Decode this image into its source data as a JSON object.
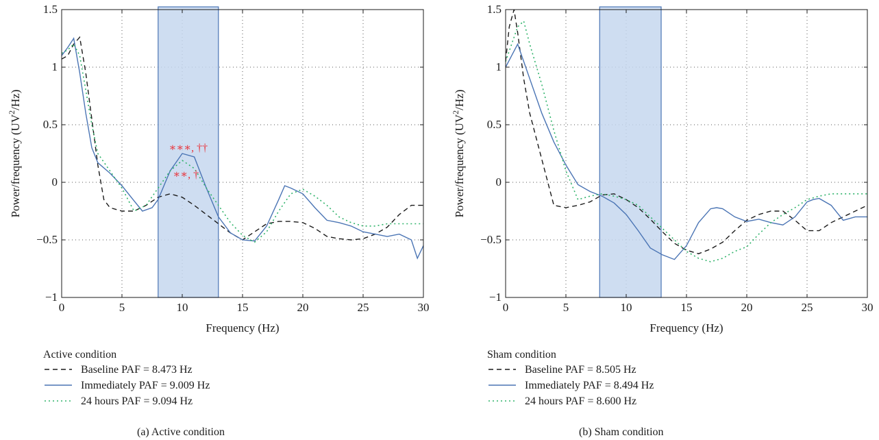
{
  "colors": {
    "baseline": "#1a1a1a",
    "immediately": "#4a74b4",
    "hours24": "#2fb36a",
    "band_fill": "#c5d7ee",
    "band_stroke": "#4a74b4",
    "annotation": "#e8333a"
  },
  "chart_data": [
    {
      "type": "line",
      "panel": "a",
      "caption": "(a) Active condition",
      "xlabel": "Frequency (Hz)",
      "ylabel": "Power/frequency (UV",
      "ylabel_sup": "2",
      "ylabel_tail": "/Hz)",
      "xlim": [
        0,
        30
      ],
      "ylim": [
        -1,
        1.5
      ],
      "xticks": [
        0,
        5,
        10,
        15,
        20,
        25,
        30
      ],
      "xtick_labels": [
        "0",
        "5",
        "10",
        "15",
        "20",
        "25",
        "30"
      ],
      "yticks": [
        -1,
        -0.5,
        0,
        0.5,
        1,
        1.5
      ],
      "ytick_labels": [
        "−1",
        "−0.5",
        "0",
        "0.5",
        "1",
        "1.5"
      ],
      "grid": "dotted",
      "band": [
        8,
        13
      ],
      "legend_title": "Active condition",
      "annotations": [
        {
          "text": "∗∗∗, ††",
          "x": 10.5,
          "y": 0.27
        },
        {
          "text": "∗∗, †",
          "x": 10.3,
          "y": 0.04
        }
      ],
      "series": [
        {
          "name": "Baseline PAF = 8.473 Hz",
          "style": "dashed",
          "x": [
            0,
            0.5,
            1,
            1.5,
            2,
            2.5,
            3,
            3.5,
            4,
            5,
            6,
            7,
            8,
            9,
            10,
            11,
            12,
            13,
            14,
            15,
            16,
            17,
            18,
            19,
            20,
            21,
            22,
            23,
            24,
            25,
            26,
            27,
            28,
            29,
            30
          ],
          "values": [
            1.07,
            1.1,
            1.2,
            1.26,
            0.95,
            0.55,
            0.15,
            -0.15,
            -0.22,
            -0.25,
            -0.25,
            -0.2,
            -0.13,
            -0.1,
            -0.13,
            -0.2,
            -0.28,
            -0.36,
            -0.44,
            -0.5,
            -0.43,
            -0.36,
            -0.34,
            -0.34,
            -0.35,
            -0.4,
            -0.47,
            -0.49,
            -0.5,
            -0.49,
            -0.45,
            -0.39,
            -0.28,
            -0.2,
            -0.2
          ]
        },
        {
          "name": "Immediately PAF = 9.009 Hz",
          "style": "solid",
          "x": [
            0,
            0.5,
            1,
            1.5,
            2,
            2.5,
            3,
            4,
            5,
            6,
            6.7,
            7.5,
            8,
            9,
            10,
            11,
            12,
            13,
            14,
            15,
            16,
            17,
            18,
            18.5,
            19,
            20,
            21,
            22,
            23,
            24,
            25,
            26,
            27,
            28,
            29,
            29.5,
            30
          ],
          "values": [
            1.1,
            1.17,
            1.25,
            0.95,
            0.6,
            0.3,
            0.17,
            0.08,
            -0.03,
            -0.16,
            -0.25,
            -0.22,
            -0.15,
            0.1,
            0.25,
            0.22,
            -0.05,
            -0.3,
            -0.44,
            -0.5,
            -0.51,
            -0.38,
            -0.15,
            -0.03,
            -0.05,
            -0.1,
            -0.22,
            -0.33,
            -0.35,
            -0.38,
            -0.43,
            -0.45,
            -0.47,
            -0.45,
            -0.5,
            -0.66,
            -0.55
          ]
        },
        {
          "name": "24 hours PAF = 9.094 Hz",
          "style": "dotted",
          "x": [
            0,
            0.5,
            1,
            1.5,
            2,
            2.5,
            3,
            4,
            5,
            6,
            7,
            8,
            9,
            10,
            11,
            12,
            13,
            14,
            15,
            16,
            17,
            18,
            19,
            20,
            21,
            22,
            23,
            24,
            25,
            26,
            27,
            28,
            29,
            30
          ],
          "values": [
            1.12,
            1.15,
            1.2,
            1.1,
            0.8,
            0.5,
            0.25,
            0.1,
            -0.05,
            -0.25,
            -0.2,
            -0.05,
            0.1,
            0.19,
            0.12,
            -0.05,
            -0.2,
            -0.35,
            -0.46,
            -0.52,
            -0.43,
            -0.25,
            -0.1,
            -0.06,
            -0.12,
            -0.2,
            -0.3,
            -0.35,
            -0.38,
            -0.38,
            -0.36,
            -0.36,
            -0.36,
            -0.36
          ]
        }
      ]
    },
    {
      "type": "line",
      "panel": "b",
      "caption": "(b) Sham condition",
      "xlabel": "Frequency (Hz)",
      "ylabel": "Power/frequency (UV",
      "ylabel_sup": "2",
      "ylabel_tail": "/Hz)",
      "xlim": [
        0,
        30
      ],
      "ylim": [
        -1,
        1.5
      ],
      "xticks": [
        0,
        5,
        10,
        15,
        20,
        25,
        30
      ],
      "xtick_labels": [
        "0",
        "5",
        "10",
        "15",
        "20",
        "25",
        "30"
      ],
      "yticks": [
        -1,
        -0.5,
        0,
        0.5,
        1,
        1.5
      ],
      "ytick_labels": [
        "−1",
        "−0.5",
        "0",
        "0.5",
        "1",
        "1.5"
      ],
      "grid": "dotted",
      "band": [
        7.8,
        12.9
      ],
      "legend_title": "Sham condition",
      "annotations": [],
      "series": [
        {
          "name": "Baseline PAF = 8.505 Hz",
          "style": "dashed",
          "x": [
            0,
            0.3,
            0.7,
            1,
            1.5,
            2,
            3,
            4,
            5,
            6,
            7,
            8,
            9,
            10,
            11,
            12,
            13,
            14,
            15,
            16,
            17,
            18,
            19,
            20,
            21,
            22,
            23,
            24,
            25,
            26,
            27,
            28,
            29,
            30
          ],
          "values": [
            1.05,
            1.35,
            1.5,
            1.3,
            0.9,
            0.6,
            0.2,
            -0.2,
            -0.22,
            -0.2,
            -0.17,
            -0.11,
            -0.1,
            -0.15,
            -0.22,
            -0.32,
            -0.43,
            -0.53,
            -0.59,
            -0.62,
            -0.58,
            -0.52,
            -0.42,
            -0.33,
            -0.28,
            -0.25,
            -0.25,
            -0.33,
            -0.42,
            -0.42,
            -0.35,
            -0.3,
            -0.25,
            -0.2
          ]
        },
        {
          "name": "Immediately PAF = 8.494 Hz",
          "style": "solid",
          "x": [
            0,
            0.5,
            1,
            1.5,
            2,
            3,
            4,
            5,
            6,
            7,
            8,
            9,
            10,
            11,
            12,
            13,
            14,
            15,
            16,
            17,
            17.5,
            18,
            19,
            20,
            21,
            22,
            23,
            24,
            25,
            25.5,
            26,
            27,
            28,
            29,
            30
          ],
          "values": [
            1.0,
            1.1,
            1.2,
            1.05,
            0.9,
            0.6,
            0.35,
            0.15,
            -0.02,
            -0.08,
            -0.12,
            -0.18,
            -0.28,
            -0.42,
            -0.57,
            -0.63,
            -0.67,
            -0.55,
            -0.35,
            -0.23,
            -0.22,
            -0.23,
            -0.3,
            -0.34,
            -0.32,
            -0.35,
            -0.37,
            -0.3,
            -0.17,
            -0.15,
            -0.14,
            -0.2,
            -0.33,
            -0.3,
            -0.3
          ]
        },
        {
          "name": "24 hours PAF = 8.600 Hz",
          "style": "dotted",
          "x": [
            0,
            0.5,
            1,
            1.5,
            2,
            3,
            4,
            5,
            6,
            7,
            8,
            9,
            10,
            11,
            12,
            13,
            14,
            15,
            16,
            17,
            18,
            19,
            20,
            21,
            22,
            23,
            24,
            25,
            26,
            27,
            28,
            29,
            30
          ],
          "values": [
            1.05,
            1.2,
            1.35,
            1.4,
            1.2,
            0.85,
            0.45,
            0.1,
            -0.15,
            -0.12,
            -0.1,
            -0.12,
            -0.15,
            -0.2,
            -0.3,
            -0.4,
            -0.5,
            -0.6,
            -0.66,
            -0.69,
            -0.66,
            -0.6,
            -0.56,
            -0.45,
            -0.35,
            -0.28,
            -0.22,
            -0.15,
            -0.12,
            -0.1,
            -0.1,
            -0.1,
            -0.1
          ]
        }
      ]
    }
  ]
}
